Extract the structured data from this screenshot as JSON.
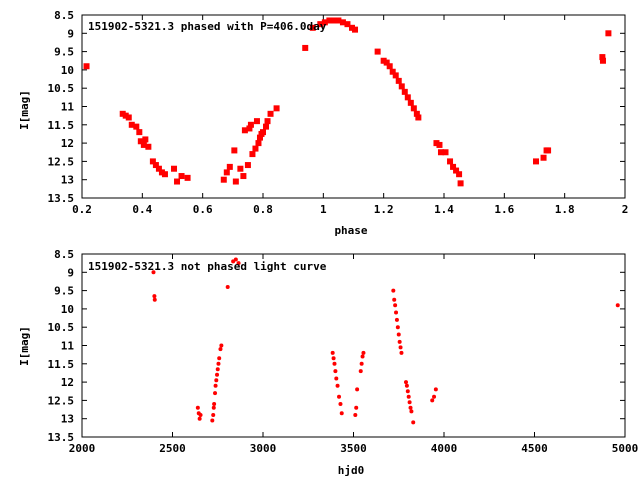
{
  "chart_data": [
    {
      "type": "scatter",
      "title": "151902-5321.3 phased with P=406.0day",
      "xlabel": "phase",
      "ylabel": "I[mag]",
      "xlim": [
        0.2,
        2.0
      ],
      "ylim": [
        8.5,
        13.5
      ],
      "y_inverted": true,
      "x_ticks": [
        "0.2",
        "0.4",
        "0.6",
        "0.8",
        "1",
        "1.2",
        "1.4",
        "1.6",
        "1.8",
        "2"
      ],
      "y_ticks": [
        "8.5",
        "9",
        "9.5",
        "10",
        "10.5",
        "11",
        "11.5",
        "12",
        "12.5",
        "13",
        "13.5"
      ],
      "grid": false,
      "marker_color": "#ff0000",
      "series": [
        {
          "points": [
            [
              0.215,
              9.9
            ],
            [
              0.335,
              11.2
            ],
            [
              0.345,
              11.25
            ],
            [
              0.355,
              11.3
            ],
            [
              0.365,
              11.5
            ],
            [
              0.38,
              11.55
            ],
            [
              0.39,
              11.7
            ],
            [
              0.395,
              11.95
            ],
            [
              0.405,
              12.05
            ],
            [
              0.41,
              11.9
            ],
            [
              0.42,
              12.1
            ],
            [
              0.435,
              12.5
            ],
            [
              0.445,
              12.6
            ],
            [
              0.455,
              12.7
            ],
            [
              0.465,
              12.8
            ],
            [
              0.475,
              12.85
            ],
            [
              0.505,
              12.7
            ],
            [
              0.515,
              13.05
            ],
            [
              0.53,
              12.9
            ],
            [
              0.55,
              12.95
            ],
            [
              0.67,
              13.0
            ],
            [
              0.68,
              12.8
            ],
            [
              0.69,
              12.65
            ],
            [
              0.705,
              12.2
            ],
            [
              0.71,
              13.05
            ],
            [
              0.725,
              12.7
            ],
            [
              0.735,
              12.9
            ],
            [
              0.74,
              11.65
            ],
            [
              0.75,
              12.6
            ],
            [
              0.755,
              11.6
            ],
            [
              0.76,
              11.5
            ],
            [
              0.765,
              12.3
            ],
            [
              0.775,
              12.15
            ],
            [
              0.78,
              11.4
            ],
            [
              0.785,
              12.0
            ],
            [
              0.79,
              11.85
            ],
            [
              0.795,
              11.75
            ],
            [
              0.8,
              11.7
            ],
            [
              0.81,
              11.55
            ],
            [
              0.815,
              11.4
            ],
            [
              0.825,
              11.2
            ],
            [
              0.845,
              11.05
            ],
            [
              0.94,
              9.4
            ],
            [
              0.965,
              8.85
            ],
            [
              0.99,
              8.75
            ],
            [
              1.005,
              8.7
            ],
            [
              1.02,
              8.65
            ],
            [
              1.035,
              8.65
            ],
            [
              1.05,
              8.65
            ],
            [
              1.065,
              8.7
            ],
            [
              1.08,
              8.75
            ],
            [
              1.095,
              8.85
            ],
            [
              1.105,
              8.9
            ],
            [
              1.18,
              9.5
            ],
            [
              1.2,
              9.75
            ],
            [
              1.21,
              9.8
            ],
            [
              1.22,
              9.9
            ],
            [
              1.23,
              10.05
            ],
            [
              1.24,
              10.15
            ],
            [
              1.25,
              10.3
            ],
            [
              1.26,
              10.45
            ],
            [
              1.27,
              10.6
            ],
            [
              1.28,
              10.75
            ],
            [
              1.29,
              10.9
            ],
            [
              1.3,
              11.05
            ],
            [
              1.31,
              11.2
            ],
            [
              1.315,
              11.3
            ],
            [
              1.375,
              12.0
            ],
            [
              1.385,
              12.05
            ],
            [
              1.39,
              12.25
            ],
            [
              1.405,
              12.25
            ],
            [
              1.42,
              12.5
            ],
            [
              1.43,
              12.65
            ],
            [
              1.44,
              12.75
            ],
            [
              1.45,
              12.85
            ],
            [
              1.455,
              13.1
            ],
            [
              1.705,
              12.5
            ],
            [
              1.73,
              12.4
            ],
            [
              1.74,
              12.2
            ],
            [
              1.745,
              12.2
            ],
            [
              1.925,
              9.65
            ],
            [
              1.927,
              9.75
            ],
            [
              1.945,
              9.0
            ]
          ]
        }
      ]
    },
    {
      "type": "scatter",
      "title": "151902-5321.3 not phased light curve",
      "xlabel": "hjd0",
      "ylabel": "I[mag]",
      "xlim": [
        2000,
        5000
      ],
      "ylim": [
        8.5,
        13.5
      ],
      "y_inverted": true,
      "x_ticks": [
        "2000",
        "2500",
        "3000",
        "3500",
        "4000",
        "4500",
        "5000"
      ],
      "y_ticks": [
        "8.5",
        "9",
        "9.5",
        "10",
        "10.5",
        "11",
        "11.5",
        "12",
        "12.5",
        "13",
        "13.5"
      ],
      "grid": false,
      "marker_color": "#ff0000",
      "series": [
        {
          "points": [
            [
              2395,
              9.0
            ],
            [
              2400,
              9.65
            ],
            [
              2402,
              9.75
            ],
            [
              2640,
              12.7
            ],
            [
              2645,
              12.85
            ],
            [
              2650,
              13.0
            ],
            [
              2655,
              12.9
            ],
            [
              2720,
              13.05
            ],
            [
              2725,
              12.9
            ],
            [
              2728,
              12.7
            ],
            [
              2730,
              12.6
            ],
            [
              2735,
              12.3
            ],
            [
              2738,
              12.1
            ],
            [
              2742,
              11.95
            ],
            [
              2746,
              11.8
            ],
            [
              2750,
              11.65
            ],
            [
              2754,
              11.5
            ],
            [
              2758,
              11.35
            ],
            [
              2765,
              11.1
            ],
            [
              2770,
              11.0
            ],
            [
              2805,
              9.4
            ],
            [
              2835,
              8.7
            ],
            [
              2850,
              8.65
            ],
            [
              2865,
              8.75
            ],
            [
              3385,
              11.2
            ],
            [
              3390,
              11.35
            ],
            [
              3395,
              11.5
            ],
            [
              3400,
              11.7
            ],
            [
              3405,
              11.9
            ],
            [
              3412,
              12.1
            ],
            [
              3420,
              12.4
            ],
            [
              3428,
              12.6
            ],
            [
              3435,
              12.85
            ],
            [
              3510,
              12.9
            ],
            [
              3515,
              12.7
            ],
            [
              3520,
              12.2
            ],
            [
              3540,
              11.7
            ],
            [
              3545,
              11.5
            ],
            [
              3550,
              11.3
            ],
            [
              3555,
              11.2
            ],
            [
              3720,
              9.5
            ],
            [
              3725,
              9.75
            ],
            [
              3730,
              9.9
            ],
            [
              3735,
              10.1
            ],
            [
              3740,
              10.3
            ],
            [
              3745,
              10.5
            ],
            [
              3750,
              10.7
            ],
            [
              3755,
              10.9
            ],
            [
              3760,
              11.05
            ],
            [
              3765,
              11.2
            ],
            [
              3790,
              12.0
            ],
            [
              3795,
              12.1
            ],
            [
              3800,
              12.25
            ],
            [
              3805,
              12.4
            ],
            [
              3810,
              12.55
            ],
            [
              3815,
              12.7
            ],
            [
              3820,
              12.8
            ],
            [
              3830,
              13.1
            ],
            [
              3935,
              12.5
            ],
            [
              3945,
              12.4
            ],
            [
              3955,
              12.2
            ],
            [
              4960,
              9.9
            ]
          ]
        }
      ]
    }
  ]
}
